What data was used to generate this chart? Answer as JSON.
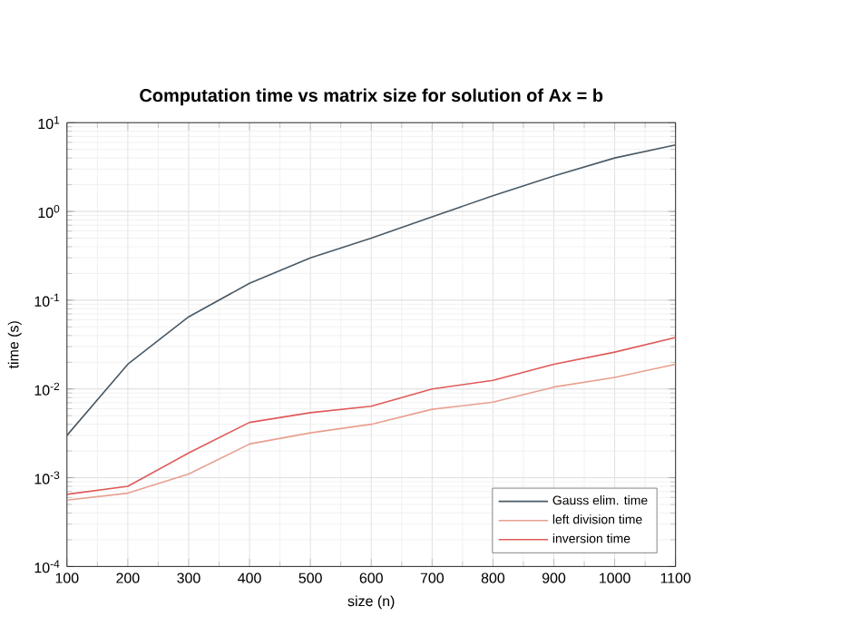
{
  "chart_data": {
    "type": "line",
    "title": "Computation time vs matrix size for solution of Ax = b",
    "xlabel": "size (n)",
    "ylabel": "time (s)",
    "log": "y",
    "grid": true,
    "legend": "bottom right",
    "marker": "none",
    "line_style": "solid",
    "x": [
      100,
      200,
      300,
      400,
      500,
      600,
      700,
      800,
      900,
      1000,
      1100
    ],
    "xlim": [
      100,
      1100
    ],
    "xticks": [
      100,
      200,
      300,
      400,
      500,
      600,
      700,
      800,
      900,
      1000,
      1100
    ],
    "ylim": [
      0.0001,
      10
    ],
    "yticks": [
      {
        "value": 0.0001,
        "label": "10$^{-4}$"
      },
      {
        "value": 0.001,
        "label": "10$^{-3}$"
      },
      {
        "value": 0.01,
        "label": "10$^{-2}$"
      },
      {
        "value": 0.1,
        "label": "10$^{-1}$"
      },
      {
        "value": 1,
        "label": "10$^{0}$"
      },
      {
        "value": 10,
        "label": "10$^{1}$"
      }
    ],
    "series": [
      {
        "name": "Gauss elim. time",
        "color": "#4a5a66",
        "values": [
          0.003,
          0.019,
          0.065,
          0.155,
          0.3,
          0.5,
          0.87,
          1.5,
          2.5,
          4.0,
          5.6
        ]
      },
      {
        "name": "left division time",
        "color": "#e8a090",
        "values": [
          0.00056,
          0.00067,
          0.0011,
          0.0024,
          0.0032,
          0.004,
          0.0059,
          0.0071,
          0.0105,
          0.0135,
          0.019
        ]
      },
      {
        "name": "inversion time",
        "color": "#e05a5a",
        "values": [
          0.00065,
          0.0008,
          0.0019,
          0.0042,
          0.0054,
          0.0064,
          0.01,
          0.0125,
          0.019,
          0.026,
          0.038
        ]
      }
    ]
  }
}
